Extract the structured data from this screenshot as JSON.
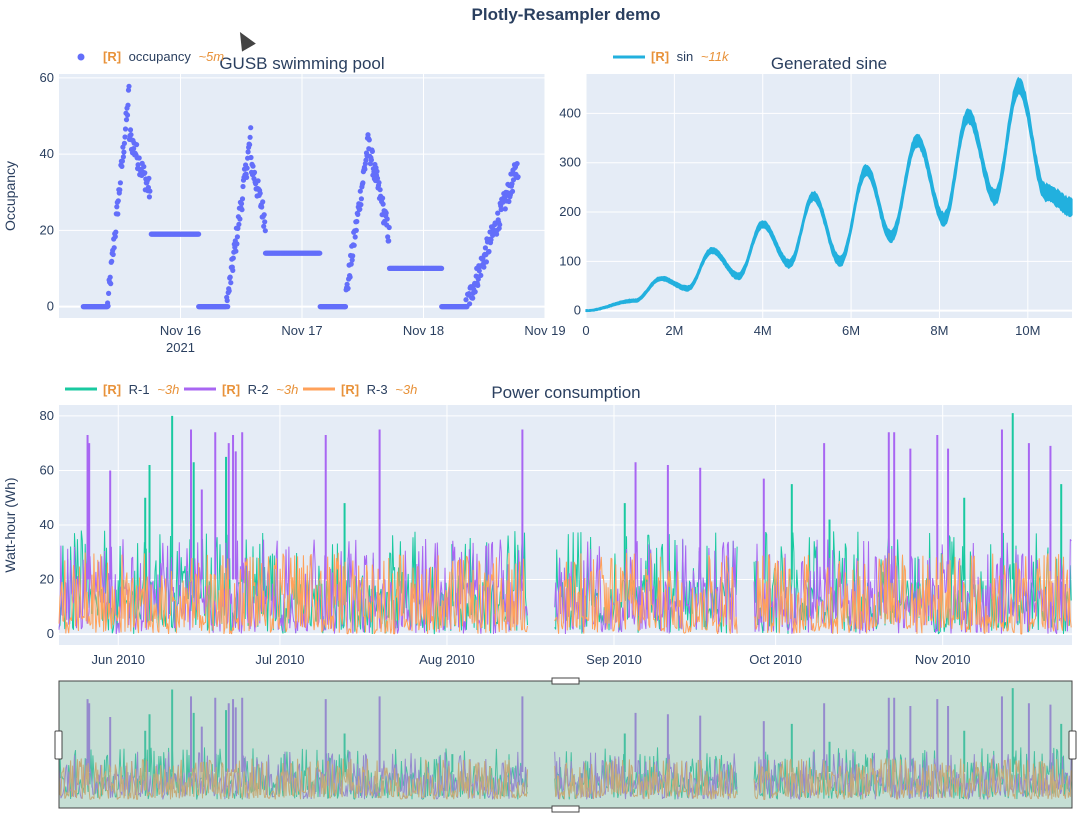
{
  "page": {
    "title": "Plotly-Resampler demo"
  },
  "colors": {
    "occupancy": "#636efa",
    "sin": "#22b0de",
    "r1": "#19c9a0",
    "r2": "#a866f2",
    "r3": "#ffa15a",
    "tag": "#e8923a",
    "plot_bg": "#e5ecf6",
    "grid": "#ffffff",
    "text": "#2a3f5f"
  },
  "chart_data": [
    {
      "type": "scatter",
      "title": "GUSB swimming pool",
      "xlabel": "",
      "ylabel": "Occupancy",
      "ylim": [
        -3,
        61
      ],
      "yticks": [
        0,
        20,
        40,
        60
      ],
      "xticks": [
        {
          "label": "Nov 16",
          "sub": "2021",
          "day": 16
        },
        {
          "label": "Nov 17",
          "sub": "",
          "day": 17
        },
        {
          "label": "Nov 18",
          "sub": "",
          "day": 18
        },
        {
          "label": "Nov 19",
          "sub": "",
          "day": 19
        }
      ],
      "xlim_days": [
        15.0,
        19.0
      ],
      "legend": [
        {
          "tag": "[R]",
          "name": "occupancy",
          "agg": "~5m"
        }
      ],
      "series": [
        {
          "name": "occupancy",
          "segments": [
            {
              "kind": "flat",
              "from": 15.2,
              "to": 15.4,
              "value": 0
            },
            {
              "kind": "rise",
              "from": 15.4,
              "to": 15.58,
              "start": 0,
              "end": 57
            },
            {
              "kind": "fall",
              "from": 15.58,
              "to": 15.75,
              "start": 45,
              "end": 30
            },
            {
              "kind": "flat",
              "from": 15.76,
              "to": 16.15,
              "value": 19
            },
            {
              "kind": "flat",
              "from": 16.15,
              "to": 16.38,
              "value": 0
            },
            {
              "kind": "rise",
              "from": 16.38,
              "to": 16.58,
              "start": 0,
              "end": 45
            },
            {
              "kind": "fall",
              "from": 16.58,
              "to": 16.7,
              "start": 38,
              "end": 22
            },
            {
              "kind": "flat",
              "from": 16.7,
              "to": 17.15,
              "value": 14
            },
            {
              "kind": "flat",
              "from": 17.15,
              "to": 17.35,
              "value": 0
            },
            {
              "kind": "rise",
              "from": 17.35,
              "to": 17.55,
              "start": 0,
              "end": 44
            },
            {
              "kind": "fall",
              "from": 17.55,
              "to": 17.72,
              "start": 42,
              "end": 18
            },
            {
              "kind": "flat",
              "from": 17.72,
              "to": 18.15,
              "value": 10
            },
            {
              "kind": "flat",
              "from": 18.15,
              "to": 18.35,
              "value": 0
            },
            {
              "kind": "rise",
              "from": 18.35,
              "to": 18.78,
              "start": 0,
              "end": 37
            }
          ]
        }
      ]
    },
    {
      "type": "line",
      "title": "Generated sine",
      "xlabel": "",
      "ylabel": "",
      "xlim": [
        0,
        11000000
      ],
      "ylim": [
        -15,
        480
      ],
      "yticks": [
        0,
        100,
        200,
        300,
        400
      ],
      "xticks": [
        {
          "label": "0",
          "value": 0
        },
        {
          "label": "2M",
          "value": 2000000
        },
        {
          "label": "4M",
          "value": 4000000
        },
        {
          "label": "6M",
          "value": 6000000
        },
        {
          "label": "8M",
          "value": 8000000
        },
        {
          "label": "10M",
          "value": 10000000
        }
      ],
      "legend": [
        {
          "tag": "[R]",
          "name": "sin",
          "agg": "~11k"
        }
      ],
      "series": [
        {
          "name": "sin",
          "peaks": [
            {
              "x": 1700000,
              "y": 65
            },
            {
              "x": 2850000,
              "y": 122
            },
            {
              "x": 4000000,
              "y": 175
            },
            {
              "x": 5150000,
              "y": 232
            },
            {
              "x": 6350000,
              "y": 285
            },
            {
              "x": 7500000,
              "y": 345
            },
            {
              "x": 8650000,
              "y": 395
            },
            {
              "x": 9800000,
              "y": 455
            }
          ],
          "troughs": [
            {
              "x": 0,
              "y": 0
            },
            {
              "x": 1100000,
              "y": 20
            },
            {
              "x": 2300000,
              "y": 45
            },
            {
              "x": 3450000,
              "y": 70
            },
            {
              "x": 4600000,
              "y": 95
            },
            {
              "x": 5750000,
              "y": 100
            },
            {
              "x": 6900000,
              "y": 150
            },
            {
              "x": 8100000,
              "y": 185
            },
            {
              "x": 9250000,
              "y": 230
            },
            {
              "x": 10400000,
              "y": 240
            },
            {
              "x": 11000000,
              "y": 210
            }
          ]
        }
      ]
    },
    {
      "type": "line",
      "title": "Power consumption",
      "xlabel": "",
      "ylabel": "Watt-hour (Wh)",
      "ylim": [
        -4,
        84
      ],
      "yticks": [
        0,
        20,
        40,
        60,
        80
      ],
      "xlim_days": [
        0,
        188
      ],
      "xticks": [
        {
          "label": "Jun 2010",
          "day": 11
        },
        {
          "label": "Jul 2010",
          "day": 41
        },
        {
          "label": "Aug 2010",
          "day": 72
        },
        {
          "label": "Sep 2010",
          "day": 103
        },
        {
          "label": "Oct 2010",
          "day": 133
        },
        {
          "label": "Nov 2010",
          "day": 164
        }
      ],
      "data_ranges_days": [
        [
          0,
          87
        ],
        [
          92,
          126
        ],
        [
          129,
          188
        ]
      ],
      "legend": [
        {
          "tag": "[R]",
          "name": "R-1",
          "agg": "~3h"
        },
        {
          "tag": "[R]",
          "name": "R-2",
          "agg": "~3h"
        },
        {
          "tag": "[R]",
          "name": "R-3",
          "agg": "~3h"
        }
      ],
      "series": [
        {
          "name": "R-1",
          "base": 38,
          "spikes": [
            {
              "day": 16,
              "v": 50
            },
            {
              "day": 16.8,
              "v": 62
            },
            {
              "day": 21,
              "v": 80
            },
            {
              "day": 25,
              "v": 63
            },
            {
              "day": 31,
              "v": 65
            },
            {
              "day": 53,
              "v": 48
            },
            {
              "day": 73,
              "v": 33
            },
            {
              "day": 105,
              "v": 48
            },
            {
              "day": 128,
              "v": 52
            },
            {
              "day": 136,
              "v": 55
            },
            {
              "day": 143,
              "v": 42
            },
            {
              "day": 168,
              "v": 50
            },
            {
              "day": 177,
              "v": 81
            },
            {
              "day": 186,
              "v": 55
            }
          ]
        },
        {
          "name": "R-2",
          "base": 35,
          "spikes": [
            {
              "day": 5.3,
              "v": 73
            },
            {
              "day": 5.6,
              "v": 70
            },
            {
              "day": 9.5,
              "v": 60
            },
            {
              "day": 24.5,
              "v": 75
            },
            {
              "day": 26.5,
              "v": 53
            },
            {
              "day": 29,
              "v": 74
            },
            {
              "day": 31.5,
              "v": 70
            },
            {
              "day": 32.3,
              "v": 73
            },
            {
              "day": 32.8,
              "v": 67
            },
            {
              "day": 34,
              "v": 74
            },
            {
              "day": 49.5,
              "v": 73
            },
            {
              "day": 59.5,
              "v": 75
            },
            {
              "day": 86,
              "v": 75
            },
            {
              "day": 107,
              "v": 63
            },
            {
              "day": 113,
              "v": 62
            },
            {
              "day": 119,
              "v": 61
            },
            {
              "day": 130.8,
              "v": 57
            },
            {
              "day": 142,
              "v": 70
            },
            {
              "day": 154,
              "v": 74
            },
            {
              "day": 155,
              "v": 74
            },
            {
              "day": 158,
              "v": 68
            },
            {
              "day": 163,
              "v": 73
            },
            {
              "day": 165,
              "v": 68
            },
            {
              "day": 175,
              "v": 75
            },
            {
              "day": 180,
              "v": 70
            },
            {
              "day": 184,
              "v": 69
            }
          ]
        },
        {
          "name": "R-3",
          "base": 30,
          "spikes": []
        }
      ]
    }
  ]
}
